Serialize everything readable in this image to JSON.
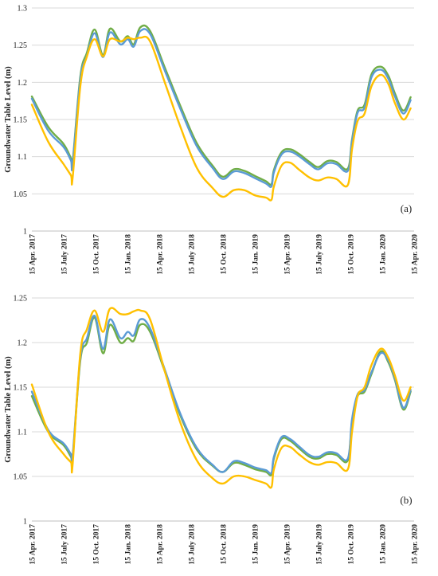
{
  "chart_data": [
    {
      "type": "line",
      "panel_label": "(a)",
      "ylabel": "Groundwater Table Level (m)",
      "ylim": [
        1,
        1.3
      ],
      "yticks": [
        "1",
        "1.05",
        "1.1",
        "1.15",
        "1.2",
        "1.25",
        "1.3"
      ],
      "xlim": [
        "2017-04-15",
        "2020-04-15"
      ],
      "xtick_labels": [
        "15 Apr. 2017",
        "15 July 2017",
        "15 Oct. 2017",
        "15 Jan. 2018",
        "15 Apr. 2018",
        "15 July 2018",
        "15 Oct. 2018",
        "15 Jan. 2019",
        "15 Apr. 2019",
        "15 July 2019",
        "15 Oct. 2019",
        "15 Jan. 2020",
        "15 Apr. 2020"
      ],
      "grid": "horizontal",
      "series": [
        {
          "color": "#70ad47",
          "x": [
            "2017-04-15",
            "2017-06-01",
            "2017-07-15",
            "2017-08-05",
            "2017-08-10",
            "2017-09-01",
            "2017-09-20",
            "2017-10-12",
            "2017-11-05",
            "2017-11-25",
            "2017-12-25",
            "2018-01-15",
            "2018-02-01",
            "2018-02-20",
            "2018-03-20",
            "2018-05-01",
            "2018-06-15",
            "2018-08-01",
            "2018-09-15",
            "2018-10-15",
            "2018-11-15",
            "2018-12-15",
            "2019-01-15",
            "2019-02-15",
            "2019-03-03",
            "2019-03-10",
            "2019-04-01",
            "2019-04-25",
            "2019-05-20",
            "2019-06-20",
            "2019-07-15",
            "2019-08-10",
            "2019-09-05",
            "2019-10-08",
            "2019-10-20",
            "2019-11-05",
            "2019-11-25",
            "2019-12-15",
            "2020-01-10",
            "2020-02-01",
            "2020-02-20",
            "2020-03-15",
            "2020-04-05"
          ],
          "y": [
            1.181,
            1.14,
            1.117,
            1.098,
            1.093,
            1.208,
            1.24,
            1.271,
            1.237,
            1.272,
            1.255,
            1.262,
            1.251,
            1.274,
            1.269,
            1.22,
            1.168,
            1.118,
            1.088,
            1.073,
            1.083,
            1.081,
            1.074,
            1.067,
            1.063,
            1.082,
            1.106,
            1.11,
            1.104,
            1.093,
            1.086,
            1.094,
            1.093,
            1.084,
            1.123,
            1.162,
            1.17,
            1.211,
            1.221,
            1.209,
            1.185,
            1.162,
            1.18
          ]
        },
        {
          "color": "#5b9bd5",
          "x": [
            "2017-04-15",
            "2017-06-01",
            "2017-07-15",
            "2017-08-05",
            "2017-08-10",
            "2017-09-01",
            "2017-09-20",
            "2017-10-12",
            "2017-11-05",
            "2017-11-25",
            "2017-12-25",
            "2018-01-15",
            "2018-02-01",
            "2018-02-20",
            "2018-03-20",
            "2018-05-01",
            "2018-06-15",
            "2018-08-01",
            "2018-09-15",
            "2018-10-15",
            "2018-11-15",
            "2018-12-15",
            "2019-01-15",
            "2019-02-15",
            "2019-03-03",
            "2019-03-10",
            "2019-04-01",
            "2019-04-25",
            "2019-05-20",
            "2019-06-20",
            "2019-07-15",
            "2019-08-10",
            "2019-09-05",
            "2019-10-08",
            "2019-10-20",
            "2019-11-05",
            "2019-11-25",
            "2019-12-15",
            "2020-01-10",
            "2020-02-01",
            "2020-02-20",
            "2020-03-15",
            "2020-04-05"
          ],
          "y": [
            1.178,
            1.135,
            1.113,
            1.095,
            1.09,
            1.204,
            1.236,
            1.266,
            1.234,
            1.267,
            1.251,
            1.258,
            1.248,
            1.269,
            1.265,
            1.216,
            1.164,
            1.114,
            1.085,
            1.07,
            1.08,
            1.078,
            1.071,
            1.064,
            1.06,
            1.079,
            1.103,
            1.107,
            1.101,
            1.09,
            1.083,
            1.091,
            1.09,
            1.081,
            1.12,
            1.159,
            1.166,
            1.207,
            1.217,
            1.205,
            1.181,
            1.158,
            1.176
          ]
        },
        {
          "color": "#ffc000",
          "x": [
            "2017-04-15",
            "2017-06-01",
            "2017-07-15",
            "2017-08-05",
            "2017-08-10",
            "2017-09-01",
            "2017-09-20",
            "2017-10-12",
            "2017-11-05",
            "2017-11-25",
            "2017-12-25",
            "2018-01-15",
            "2018-02-01",
            "2018-02-20",
            "2018-03-20",
            "2018-05-01",
            "2018-06-15",
            "2018-08-01",
            "2018-09-15",
            "2018-10-15",
            "2018-11-15",
            "2018-12-15",
            "2019-01-15",
            "2019-02-15",
            "2019-03-03",
            "2019-03-10",
            "2019-04-01",
            "2019-04-25",
            "2019-05-20",
            "2019-06-20",
            "2019-07-15",
            "2019-08-10",
            "2019-09-05",
            "2019-10-08",
            "2019-10-20",
            "2019-11-05",
            "2019-11-25",
            "2019-12-15",
            "2020-01-10",
            "2020-02-01",
            "2020-02-20",
            "2020-03-15",
            "2020-04-05"
          ],
          "y": [
            1.17,
            1.12,
            1.09,
            1.075,
            1.072,
            1.195,
            1.235,
            1.258,
            1.235,
            1.258,
            1.255,
            1.26,
            1.258,
            1.26,
            1.255,
            1.2,
            1.14,
            1.085,
            1.058,
            1.046,
            1.055,
            1.055,
            1.048,
            1.045,
            1.042,
            1.06,
            1.088,
            1.092,
            1.083,
            1.072,
            1.068,
            1.072,
            1.07,
            1.062,
            1.11,
            1.148,
            1.158,
            1.195,
            1.21,
            1.198,
            1.172,
            1.15,
            1.165
          ]
        }
      ]
    },
    {
      "type": "line",
      "panel_label": "(b)",
      "ylabel": "Groundwater Table Level (m)",
      "ylim": [
        1,
        1.25
      ],
      "yticks": [
        "1",
        "1.05",
        "1.1",
        "1.15",
        "1.2",
        "1.25"
      ],
      "xlim": [
        "2017-04-15",
        "2020-04-15"
      ],
      "xtick_labels": [
        "15 Apr. 2017",
        "15 July 2017",
        "15 Oct. 2017",
        "15 Jan. 2018",
        "15 Apr. 2018",
        "15 July 2018",
        "15 Oct. 2018",
        "15 Jan. 2019",
        "15 Apr. 2019",
        "15 July 2019",
        "15 Oct. 2019",
        "15 Jan. 2020",
        "15 Apr. 2020"
      ],
      "grid": "horizontal",
      "series": [
        {
          "color": "#70ad47",
          "x": [
            "2017-04-15",
            "2017-06-01",
            "2017-07-15",
            "2017-08-05",
            "2017-08-10",
            "2017-09-01",
            "2017-09-20",
            "2017-10-12",
            "2017-11-05",
            "2017-11-25",
            "2017-12-25",
            "2018-01-15",
            "2018-02-01",
            "2018-02-20",
            "2018-03-20",
            "2018-05-01",
            "2018-06-15",
            "2018-08-01",
            "2018-09-15",
            "2018-10-15",
            "2018-11-15",
            "2018-12-15",
            "2019-01-15",
            "2019-02-15",
            "2019-03-03",
            "2019-03-10",
            "2019-04-01",
            "2019-04-25",
            "2019-05-20",
            "2019-06-20",
            "2019-07-15",
            "2019-08-10",
            "2019-09-05",
            "2019-10-08",
            "2019-10-20",
            "2019-11-05",
            "2019-11-25",
            "2019-12-15",
            "2020-01-10",
            "2020-02-01",
            "2020-02-20",
            "2020-03-15",
            "2020-04-05"
          ],
          "y": [
            1.14,
            1.1,
            1.085,
            1.072,
            1.07,
            1.18,
            1.2,
            1.228,
            1.188,
            1.22,
            1.2,
            1.205,
            1.202,
            1.22,
            1.212,
            1.168,
            1.118,
            1.08,
            1.062,
            1.055,
            1.065,
            1.063,
            1.058,
            1.055,
            1.052,
            1.07,
            1.092,
            1.09,
            1.082,
            1.072,
            1.07,
            1.075,
            1.074,
            1.068,
            1.112,
            1.14,
            1.145,
            1.165,
            1.19,
            1.178,
            1.158,
            1.125,
            1.145
          ]
        },
        {
          "color": "#5b9bd5",
          "x": [
            "2017-04-15",
            "2017-06-01",
            "2017-07-15",
            "2017-08-05",
            "2017-08-10",
            "2017-09-01",
            "2017-09-20",
            "2017-10-12",
            "2017-11-05",
            "2017-11-25",
            "2017-12-25",
            "2018-01-15",
            "2018-02-01",
            "2018-02-20",
            "2018-03-20",
            "2018-05-01",
            "2018-06-15",
            "2018-08-01",
            "2018-09-15",
            "2018-10-15",
            "2018-11-15",
            "2018-12-15",
            "2019-01-15",
            "2019-02-15",
            "2019-03-03",
            "2019-03-10",
            "2019-04-01",
            "2019-04-25",
            "2019-05-20",
            "2019-06-20",
            "2019-07-15",
            "2019-08-10",
            "2019-09-05",
            "2019-10-08",
            "2019-10-20",
            "2019-11-05",
            "2019-11-25",
            "2019-12-15",
            "2020-01-10",
            "2020-02-01",
            "2020-02-20",
            "2020-03-15",
            "2020-04-05"
          ],
          "y": [
            1.145,
            1.102,
            1.087,
            1.075,
            1.073,
            1.183,
            1.205,
            1.23,
            1.193,
            1.226,
            1.205,
            1.212,
            1.208,
            1.226,
            1.216,
            1.17,
            1.12,
            1.082,
            1.063,
            1.055,
            1.067,
            1.065,
            1.06,
            1.057,
            1.054,
            1.072,
            1.094,
            1.092,
            1.084,
            1.074,
            1.072,
            1.077,
            1.076,
            1.07,
            1.114,
            1.142,
            1.147,
            1.167,
            1.188,
            1.18,
            1.16,
            1.127,
            1.147
          ]
        },
        {
          "color": "#ffc000",
          "x": [
            "2017-04-15",
            "2017-06-01",
            "2017-07-15",
            "2017-08-05",
            "2017-08-10",
            "2017-09-01",
            "2017-09-20",
            "2017-10-12",
            "2017-11-05",
            "2017-11-25",
            "2017-12-25",
            "2018-01-15",
            "2018-02-01",
            "2018-02-20",
            "2018-03-20",
            "2018-05-01",
            "2018-06-15",
            "2018-08-01",
            "2018-09-15",
            "2018-10-15",
            "2018-11-15",
            "2018-12-15",
            "2019-01-15",
            "2019-02-15",
            "2019-03-03",
            "2019-03-10",
            "2019-04-01",
            "2019-04-25",
            "2019-05-20",
            "2019-06-20",
            "2019-07-15",
            "2019-08-10",
            "2019-09-05",
            "2019-10-08",
            "2019-10-20",
            "2019-11-05",
            "2019-11-25",
            "2019-12-15",
            "2020-01-10",
            "2020-02-01",
            "2020-02-20",
            "2020-03-15",
            "2020-04-05"
          ],
          "y": [
            1.153,
            1.1,
            1.075,
            1.066,
            1.064,
            1.188,
            1.215,
            1.236,
            1.212,
            1.238,
            1.232,
            1.232,
            1.235,
            1.236,
            1.226,
            1.168,
            1.11,
            1.068,
            1.048,
            1.042,
            1.05,
            1.05,
            1.046,
            1.042,
            1.038,
            1.058,
            1.082,
            1.083,
            1.075,
            1.066,
            1.063,
            1.066,
            1.065,
            1.058,
            1.1,
            1.14,
            1.15,
            1.175,
            1.193,
            1.183,
            1.163,
            1.135,
            1.15
          ]
        }
      ]
    }
  ]
}
